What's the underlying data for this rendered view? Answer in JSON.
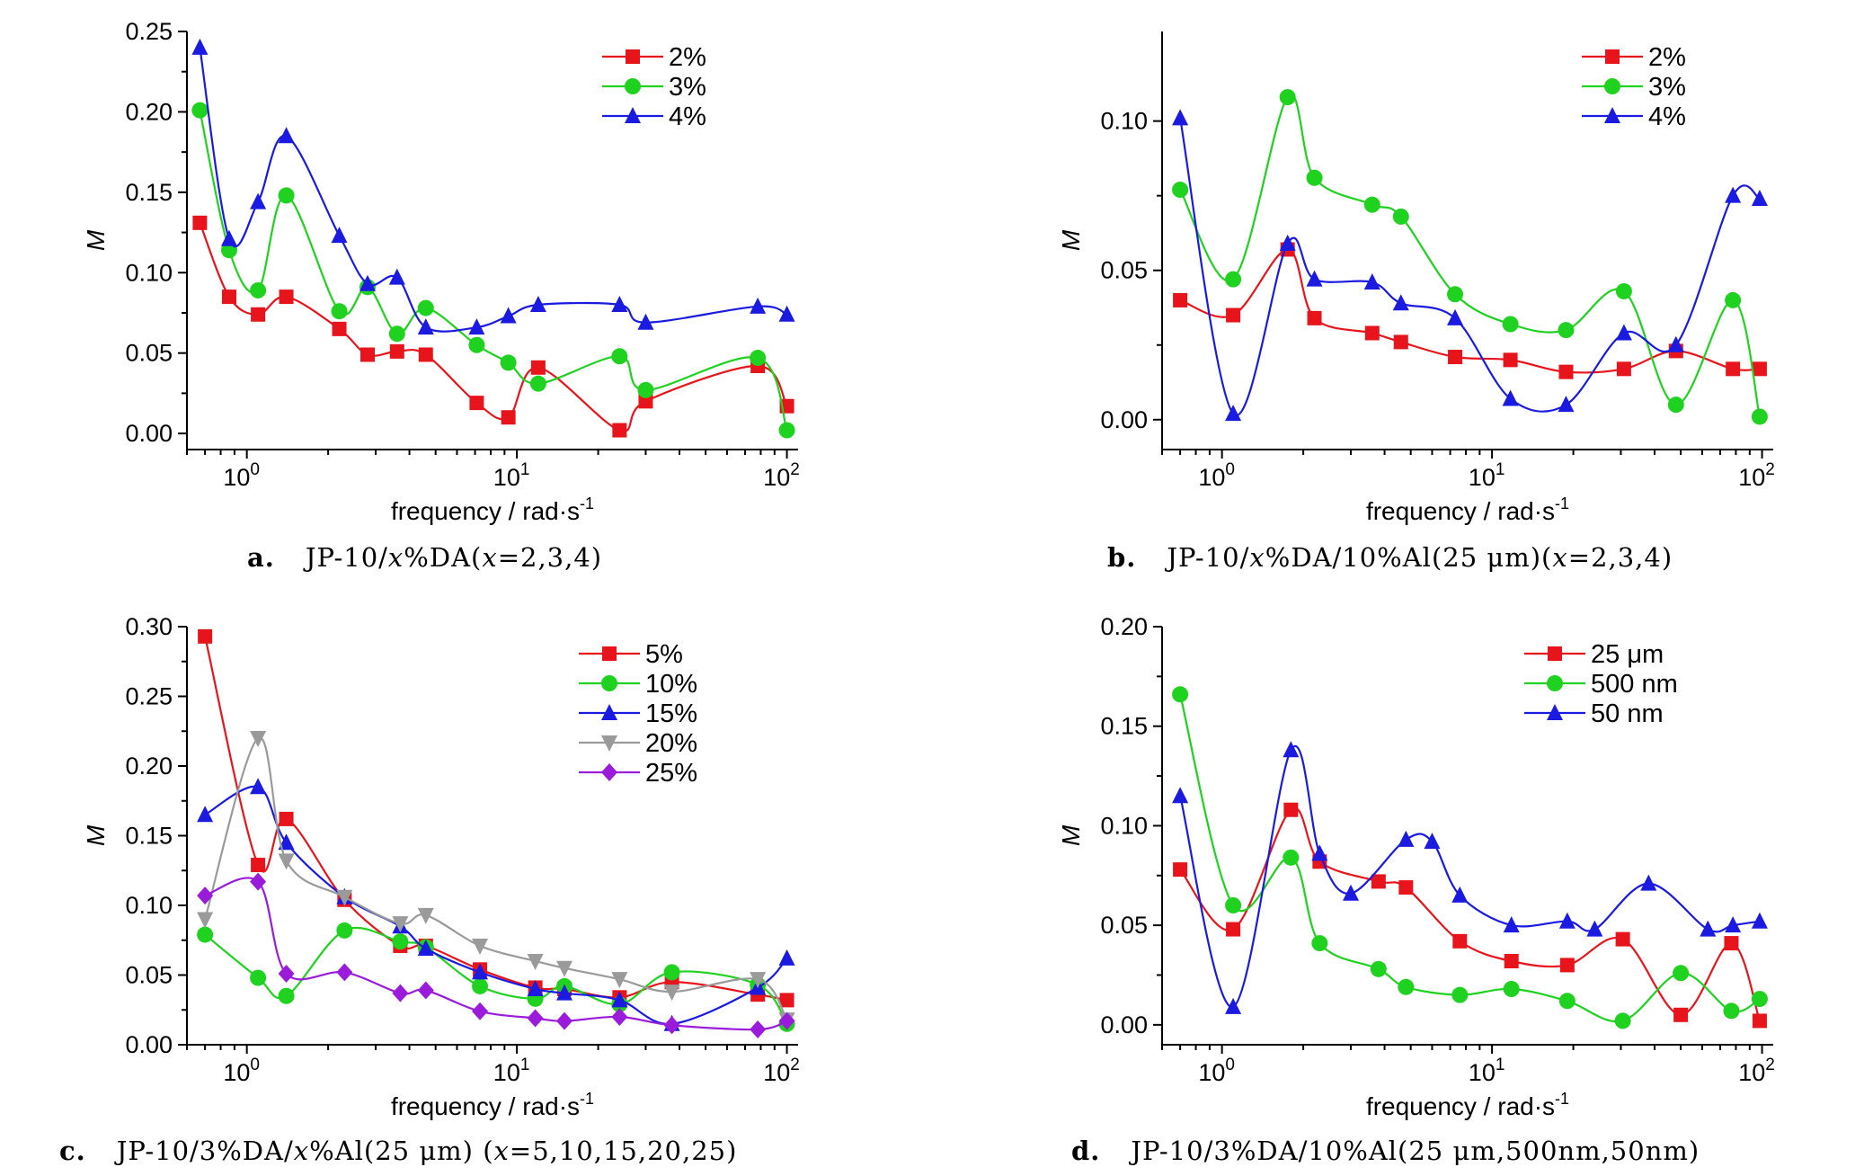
{
  "chart_data": [
    {
      "id": "a",
      "type": "line",
      "caption_letter": "a.",
      "caption_prefix": "JP-10/",
      "caption_var1": "x",
      "caption_mid": "%DA(",
      "caption_var2": "x",
      "caption_suffix": "=2,3,4)",
      "xlabel": "frequency / rad·s",
      "xlabel_sup": "-1",
      "ylabel": "M",
      "xscale": "log",
      "xlim": [
        0.6,
        110
      ],
      "ylim": [
        -0.01,
        0.25
      ],
      "yticks": [
        0.0,
        0.05,
        0.1,
        0.15,
        0.2,
        0.25
      ],
      "ytick_labels": [
        "0.00",
        "0.05",
        "0.10",
        "0.15",
        "0.20",
        "0.25"
      ],
      "xticks": [
        1,
        10,
        100
      ],
      "xtick_base": "10",
      "xtick_exps": [
        "0",
        "1",
        "2"
      ],
      "legend_position": "top-right",
      "series": [
        {
          "name": "2%",
          "color": "#e8141b",
          "marker": "square",
          "x": [
            0.67,
            0.86,
            1.1,
            1.4,
            2.2,
            2.8,
            3.6,
            4.6,
            7.1,
            9.3,
            12,
            24,
            30,
            78,
            100
          ],
          "y": [
            0.131,
            0.085,
            0.074,
            0.085,
            0.065,
            0.049,
            0.051,
            0.049,
            0.019,
            0.01,
            0.041,
            0.002,
            0.02,
            0.042,
            0.017
          ]
        },
        {
          "name": "3%",
          "color": "#1fd21f",
          "marker": "circle",
          "x": [
            0.67,
            0.86,
            1.1,
            1.4,
            2.2,
            2.8,
            3.6,
            4.6,
            7.1,
            9.3,
            12,
            24,
            30,
            78,
            100
          ],
          "y": [
            0.201,
            0.114,
            0.089,
            0.148,
            0.076,
            0.091,
            0.062,
            0.078,
            0.055,
            0.044,
            0.031,
            0.048,
            0.027,
            0.047,
            0.002
          ]
        },
        {
          "name": "4%",
          "color": "#1a1ae0",
          "marker": "triangle",
          "x": [
            0.67,
            0.86,
            1.1,
            1.4,
            2.2,
            2.8,
            3.6,
            4.6,
            7.1,
            9.3,
            12,
            24,
            30,
            78,
            100
          ],
          "y": [
            0.24,
            0.121,
            0.144,
            0.185,
            0.123,
            0.093,
            0.097,
            0.066,
            0.066,
            0.073,
            0.08,
            0.08,
            0.069,
            0.079,
            0.074
          ]
        }
      ]
    },
    {
      "id": "b",
      "type": "line",
      "caption_letter": "b.",
      "caption_prefix": "JP-10/",
      "caption_var1": "x",
      "caption_mid": "%DA/10%Al(25 μm)(",
      "caption_var2": "x",
      "caption_suffix": "=2,3,4)",
      "xlabel": "frequency / rad·s",
      "xlabel_sup": "-1",
      "ylabel": "M",
      "xscale": "log",
      "xlim": [
        0.6,
        110
      ],
      "ylim": [
        -0.01,
        0.13
      ],
      "yticks": [
        0.0,
        0.05,
        0.1
      ],
      "ytick_labels": [
        "0.00",
        "0.05",
        "0.10"
      ],
      "xticks": [
        1,
        10,
        100
      ],
      "xtick_base": "10",
      "xtick_exps": [
        "0",
        "1",
        "2"
      ],
      "legend_position": "top-right",
      "series": [
        {
          "name": "2%",
          "color": "#e8141b",
          "marker": "square",
          "x": [
            0.7,
            1.1,
            1.75,
            2.2,
            3.6,
            4.6,
            7.3,
            11.7,
            18.8,
            30.8,
            48,
            78,
            98
          ],
          "y": [
            0.04,
            0.035,
            0.057,
            0.034,
            0.029,
            0.026,
            0.021,
            0.02,
            0.016,
            0.017,
            0.023,
            0.017,
            0.017
          ]
        },
        {
          "name": "3%",
          "color": "#1fd21f",
          "marker": "circle",
          "x": [
            0.7,
            1.1,
            1.75,
            2.2,
            3.6,
            4.6,
            7.3,
            11.7,
            18.8,
            30.8,
            48,
            78,
            98
          ],
          "y": [
            0.077,
            0.047,
            0.108,
            0.081,
            0.072,
            0.068,
            0.042,
            0.032,
            0.03,
            0.043,
            0.005,
            0.04,
            0.001
          ]
        },
        {
          "name": "4%",
          "color": "#1a1ae0",
          "marker": "triangle",
          "x": [
            0.7,
            1.1,
            1.75,
            2.2,
            3.6,
            4.6,
            7.3,
            11.7,
            18.8,
            30.8,
            48,
            78,
            98
          ],
          "y": [
            0.101,
            0.002,
            0.059,
            0.047,
            0.046,
            0.039,
            0.034,
            0.007,
            0.005,
            0.029,
            0.025,
            0.075,
            0.074
          ]
        }
      ]
    },
    {
      "id": "c",
      "type": "line",
      "caption_letter": "c.",
      "caption_prefix": "JP-10/3%DA/",
      "caption_var1": "x",
      "caption_mid": "%Al(25 μm) (",
      "caption_var2": "x",
      "caption_suffix": "=5,10,15,20,25)",
      "xlabel": "frequency / rad·s",
      "xlabel_sup": "-1",
      "ylabel": "M",
      "xscale": "log",
      "xlim": [
        0.6,
        110
      ],
      "ylim": [
        0.0,
        0.3
      ],
      "yticks": [
        0.0,
        0.05,
        0.1,
        0.15,
        0.2,
        0.25,
        0.3
      ],
      "ytick_labels": [
        "0.00",
        "0.05",
        "0.10",
        "0.15",
        "0.20",
        "0.25",
        "0.30"
      ],
      "xticks": [
        1,
        10,
        100
      ],
      "xtick_base": "10",
      "xtick_exps": [
        "0",
        "1",
        "2"
      ],
      "legend_position": "top-right",
      "series": [
        {
          "name": "5%",
          "color": "#e8141b",
          "marker": "square",
          "x": [
            0.7,
            1.1,
            1.4,
            2.3,
            3.7,
            4.6,
            7.3,
            11.7,
            15,
            24,
            37.5,
            78,
            100
          ],
          "y": [
            0.293,
            0.129,
            0.162,
            0.104,
            0.071,
            0.071,
            0.054,
            0.041,
            0.04,
            0.034,
            0.045,
            0.036,
            0.032
          ]
        },
        {
          "name": "10%",
          "color": "#1fd21f",
          "marker": "circle",
          "x": [
            0.7,
            1.1,
            1.4,
            2.3,
            3.7,
            4.6,
            7.3,
            11.7,
            15,
            24,
            37.5,
            78,
            100
          ],
          "y": [
            0.079,
            0.048,
            0.035,
            0.082,
            0.074,
            0.07,
            0.042,
            0.033,
            0.042,
            0.029,
            0.052,
            0.043,
            0.015
          ]
        },
        {
          "name": "15%",
          "color": "#1a1ae0",
          "marker": "triangle",
          "x": [
            0.7,
            1.1,
            1.4,
            2.3,
            3.7,
            4.6,
            7.3,
            11.7,
            15,
            24,
            37.5,
            78,
            100
          ],
          "y": [
            0.165,
            0.185,
            0.145,
            0.106,
            0.085,
            0.069,
            0.052,
            0.04,
            0.037,
            0.032,
            0.015,
            0.041,
            0.062
          ]
        },
        {
          "name": "20%",
          "color": "#9a9a9a",
          "marker": "triangle-down",
          "x": [
            0.7,
            1.1,
            1.4,
            2.3,
            3.7,
            4.6,
            7.3,
            11.7,
            15,
            24,
            37.5,
            78,
            100
          ],
          "y": [
            0.09,
            0.22,
            0.132,
            0.106,
            0.087,
            0.093,
            0.071,
            0.06,
            0.055,
            0.047,
            0.038,
            0.047,
            0.018
          ]
        },
        {
          "name": "25%",
          "color": "#9b1bdb",
          "marker": "diamond",
          "x": [
            0.7,
            1.1,
            1.4,
            2.3,
            3.7,
            4.6,
            7.3,
            11.7,
            15,
            24,
            37.5,
            78,
            100
          ],
          "y": [
            0.107,
            0.117,
            0.051,
            0.052,
            0.037,
            0.039,
            0.024,
            0.019,
            0.017,
            0.02,
            0.014,
            0.011,
            0.017
          ]
        }
      ]
    },
    {
      "id": "d",
      "type": "line",
      "caption_letter": "d.",
      "caption_prefix": "JP-10/3%DA/10%Al(25 μm,500nm,50nm)",
      "caption_var1": "",
      "caption_mid": "",
      "caption_var2": "",
      "caption_suffix": "",
      "xlabel": "frequency / rad·s",
      "xlabel_sup": "-1",
      "ylabel": "M",
      "xscale": "log",
      "xlim": [
        0.6,
        110
      ],
      "ylim": [
        -0.01,
        0.2
      ],
      "yticks": [
        0.0,
        0.05,
        0.1,
        0.15,
        0.2
      ],
      "ytick_labels": [
        "0.00",
        "0.05",
        "0.10",
        "0.15",
        "0.20"
      ],
      "xticks": [
        1,
        10,
        100
      ],
      "xtick_base": "10",
      "xtick_exps": [
        "0",
        "1",
        "2"
      ],
      "legend_position": "top-right",
      "series": [
        {
          "name": "25 μm",
          "color": "#e8141b",
          "marker": "square",
          "x": [
            0.7,
            1.1,
            1.8,
            2.3,
            3.8,
            4.8,
            7.6,
            11.8,
            19,
            30.5,
            50,
            77,
            98
          ],
          "y": [
            0.078,
            0.048,
            0.108,
            0.082,
            0.072,
            0.069,
            0.042,
            0.032,
            0.03,
            0.043,
            0.005,
            0.041,
            0.002
          ]
        },
        {
          "name": "500 nm",
          "color": "#1fd21f",
          "marker": "circle",
          "x": [
            0.7,
            1.1,
            1.8,
            2.3,
            3.8,
            4.8,
            7.6,
            11.8,
            19,
            30.5,
            50,
            77,
            98
          ],
          "y": [
            0.166,
            0.06,
            0.084,
            0.041,
            0.028,
            0.019,
            0.015,
            0.018,
            0.012,
            0.002,
            0.026,
            0.007,
            0.013
          ]
        },
        {
          "name": "50 nm",
          "color": "#1a1ae0",
          "marker": "triangle",
          "x": [
            0.7,
            1.1,
            1.8,
            2.3,
            3.0,
            4.8,
            6.0,
            7.6,
            11.8,
            19,
            24,
            38,
            63,
            78,
            98
          ],
          "y": [
            0.115,
            0.009,
            0.138,
            0.086,
            0.066,
            0.093,
            0.092,
            0.065,
            0.05,
            0.052,
            0.048,
            0.071,
            0.048,
            0.05,
            0.052
          ]
        }
      ]
    }
  ]
}
